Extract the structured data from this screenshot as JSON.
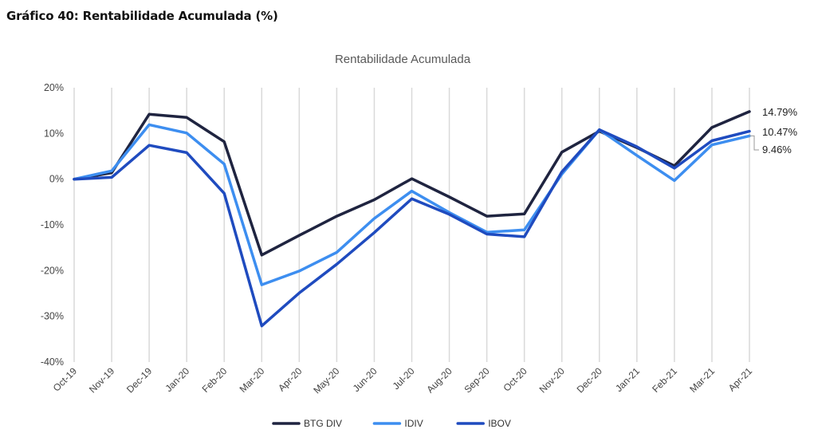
{
  "heading": "Gráfico 40: Rentabilidade Acumulada (%)",
  "chart_data": {
    "type": "line",
    "title": "Rentabilidade Acumulada",
    "xlabel": "",
    "ylabel": "",
    "ylim": [
      -40,
      20
    ],
    "yticks": [
      20,
      10,
      0,
      -10,
      -20,
      -30,
      -40
    ],
    "ytick_labels": [
      "20%",
      "10%",
      "0%",
      "-10%",
      "-20%",
      "-30%",
      "-40%"
    ],
    "grid": "vertical",
    "legend_position": "bottom",
    "categories": [
      "Oct-19",
      "Nov-19",
      "Dec-19",
      "Jan-20",
      "Feb-20",
      "Mar-20",
      "Apr-20",
      "May-20",
      "Jun-20",
      "Jul-20",
      "Aug-20",
      "Sep-20",
      "Oct-20",
      "Nov-20",
      "Dec-20",
      "Jan-21",
      "Feb-21",
      "Mar-21",
      "Apr-21"
    ],
    "series": [
      {
        "name": "BTG DIV",
        "color": "#1f2440",
        "values": [
          0,
          1.4,
          14.2,
          13.5,
          8.2,
          -16.6,
          -12.3,
          -8.1,
          -4.5,
          0.1,
          -3.9,
          -8.1,
          -7.6,
          5.9,
          10.5,
          6.9,
          2.9,
          11.3,
          14.79
        ],
        "end_label": "14.79%"
      },
      {
        "name": "IDIV",
        "color": "#3d8ef0",
        "values": [
          0,
          1.8,
          11.9,
          10.1,
          3.3,
          -23.1,
          -20.1,
          -16.0,
          -8.6,
          -2.6,
          -7.3,
          -11.6,
          -11.1,
          1.1,
          10.8,
          5.2,
          -0.3,
          7.5,
          9.46
        ],
        "end_label": "9.46%"
      },
      {
        "name": "IBOV",
        "color": "#1f4bbf",
        "values": [
          0,
          0.4,
          7.4,
          5.8,
          -3.1,
          -32.1,
          -24.9,
          -18.6,
          -11.7,
          -4.3,
          -7.7,
          -12.0,
          -12.6,
          1.6,
          10.8,
          7.1,
          2.4,
          8.4,
          10.47
        ],
        "end_label": "10.47%"
      }
    ]
  }
}
